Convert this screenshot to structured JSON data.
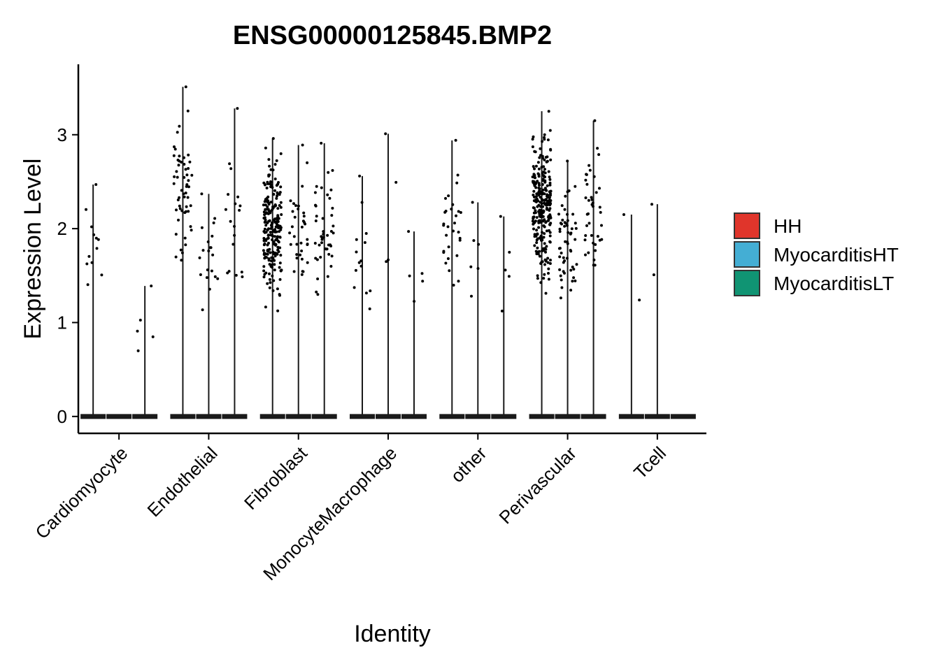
{
  "chart_data": {
    "type": "violin",
    "title": "ENSG00000125845.BMP2",
    "xlabel": "Identity",
    "ylabel": "Expression Level",
    "ylim": [
      -0.18,
      3.75
    ],
    "yticks": [
      0,
      1,
      2,
      3
    ],
    "categories": [
      "Cardiomyocyte",
      "Endothelial",
      "Fibroblast",
      "MonocyteMacrophage",
      "other",
      "Perivascular",
      "Tcell"
    ],
    "legend": {
      "position": "right",
      "entries": [
        {
          "name": "HH",
          "color": "#e0352b"
        },
        {
          "name": "MyocarditisHT",
          "color": "#44aed4"
        },
        {
          "name": "MyocarditisLT",
          "color": "#109473"
        }
      ]
    },
    "groups": [
      {
        "category": "Cardiomyocyte",
        "group": "HH",
        "max": 2.47,
        "n_points": 12
      },
      {
        "category": "Cardiomyocyte",
        "group": "MyocarditisHT",
        "max": 0.0,
        "n_points": 0
      },
      {
        "category": "Cardiomyocyte",
        "group": "MyocarditisLT",
        "max": 1.39,
        "n_points": 5
      },
      {
        "category": "Endothelial",
        "group": "HH",
        "max": 3.51,
        "n_points": 55
      },
      {
        "category": "Endothelial",
        "group": "MyocarditisHT",
        "max": 2.37,
        "n_points": 20
      },
      {
        "category": "Endothelial",
        "group": "MyocarditisLT",
        "max": 3.28,
        "n_points": 18
      },
      {
        "category": "Fibroblast",
        "group": "HH",
        "max": 2.96,
        "n_points": 220
      },
      {
        "category": "Fibroblast",
        "group": "MyocarditisHT",
        "max": 2.89,
        "n_points": 35
      },
      {
        "category": "Fibroblast",
        "group": "MyocarditisLT",
        "max": 2.91,
        "n_points": 45
      },
      {
        "category": "MonocyteMacrophage",
        "group": "HH",
        "max": 2.56,
        "n_points": 14
      },
      {
        "category": "MonocyteMacrophage",
        "group": "MyocarditisHT",
        "max": 3.01,
        "n_points": 4
      },
      {
        "category": "MonocyteMacrophage",
        "group": "MyocarditisLT",
        "max": 1.97,
        "n_points": 5
      },
      {
        "category": "other",
        "group": "HH",
        "max": 2.94,
        "n_points": 30
      },
      {
        "category": "other",
        "group": "MyocarditisHT",
        "max": 2.28,
        "n_points": 6
      },
      {
        "category": "other",
        "group": "MyocarditisLT",
        "max": 2.13,
        "n_points": 5
      },
      {
        "category": "Perivascular",
        "group": "HH",
        "max": 3.25,
        "n_points": 260
      },
      {
        "category": "Perivascular",
        "group": "MyocarditisHT",
        "max": 2.72,
        "n_points": 55
      },
      {
        "category": "Perivascular",
        "group": "MyocarditisLT",
        "max": 3.15,
        "n_points": 40
      },
      {
        "category": "Tcell",
        "group": "HH",
        "max": 2.15,
        "n_points": 2
      },
      {
        "category": "Tcell",
        "group": "MyocarditisHT",
        "max": 2.26,
        "n_points": 2
      },
      {
        "category": "Tcell",
        "group": "MyocarditisLT",
        "max": 0.0,
        "n_points": 0
      }
    ]
  }
}
